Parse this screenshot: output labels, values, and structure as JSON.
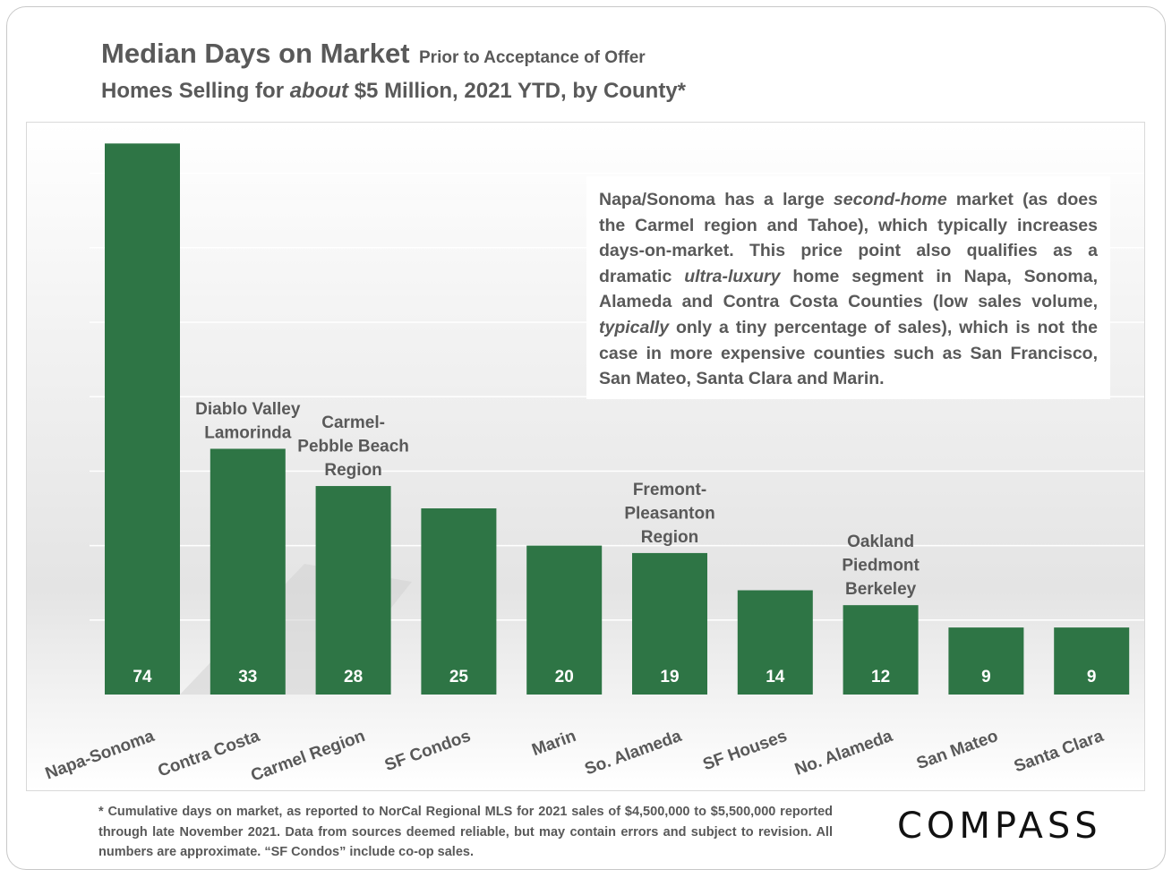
{
  "header": {
    "title": "Median Days on Market",
    "subtitle_small": "Prior to Acceptance of Offer",
    "subtitle_pre": "Homes Selling for ",
    "subtitle_em": "about",
    "subtitle_post": " $5 Million, 2021 YTD, by County*"
  },
  "note": {
    "parts": [
      {
        "t": "Napa/Sonoma has a large "
      },
      {
        "t": "second-home",
        "em": true
      },
      {
        "t": " market (as does the Carmel region and Tahoe), which typically increases days-on-market. This price point also qualifies as a dramatic "
      },
      {
        "t": "ultra-luxury",
        "em": true
      },
      {
        "t": " home segment in Napa, Sonoma, Alameda and Contra Costa Counties (low sales volume, "
      },
      {
        "t": "typically",
        "em": true
      },
      {
        "t": " only a tiny percentage of sales), which is not the case in more expensive counties such as San Francisco, San Mateo, Santa Clara and Marin."
      }
    ]
  },
  "footnote": "* Cumulative days on market, as reported to NorCal Regional MLS for 2021 sales of $4,500,000 to $5,500,000 reported through late November 2021. Data from sources deemed reliable, but may contain errors and subject to revision. All numbers are approximate. “SF Condos” include co-op sales.",
  "logo": "COMPASS",
  "chart_data": {
    "type": "bar",
    "categories": [
      "Napa-Sonoma",
      "Contra Costa",
      "Carmel Region",
      "SF Condos",
      "Marin",
      "So. Alameda",
      "SF Houses",
      "No. Alameda",
      "San Mateo",
      "Santa Clara"
    ],
    "values": [
      74,
      33,
      28,
      25,
      20,
      19,
      14,
      12,
      9,
      9
    ],
    "annotations": [
      {
        "index": 1,
        "lines": [
          "Diablo Valley",
          "Lamorinda"
        ]
      },
      {
        "index": 2,
        "lines": [
          "Carmel-",
          "Pebble Beach",
          "Region"
        ]
      },
      {
        "index": 5,
        "lines": [
          "Fremont-",
          "Pleasanton",
          "Region"
        ]
      },
      {
        "index": 7,
        "lines": [
          "Oakland",
          "Piedmont",
          "Berkeley"
        ]
      }
    ],
    "ylim": [
      0,
      77
    ],
    "grid": true,
    "bar_color": "#2e7545",
    "value_label_color": "#ffffff",
    "text_color": "#595959"
  }
}
